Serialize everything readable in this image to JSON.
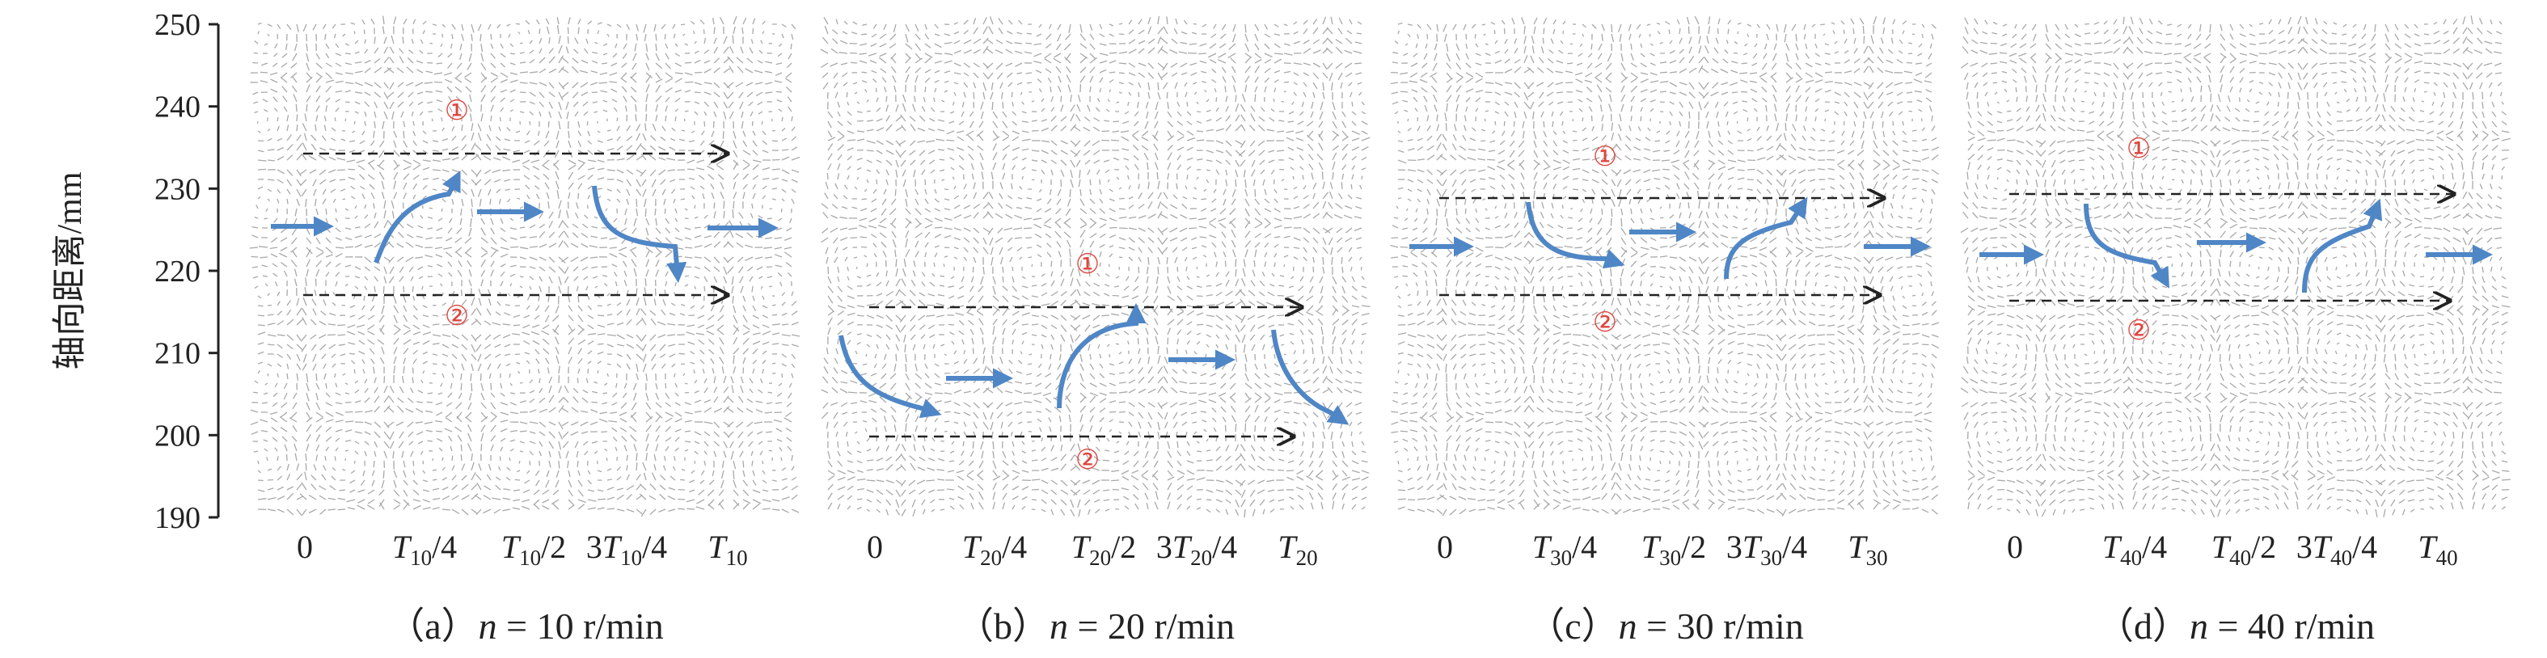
{
  "y_axis": {
    "label": "轴向距离/mm",
    "ticks": [
      "250",
      "240",
      "230",
      "220",
      "210",
      "200",
      "190"
    ]
  },
  "panels": [
    {
      "caption_prefix": "（a）",
      "caption_var": "n",
      "caption_value": " = 10 r/min",
      "columns": [
        {
          "main": "0",
          "sub": "",
          "tail": ""
        },
        {
          "main": "T",
          "sub": "10",
          "tail": "/4"
        },
        {
          "main": "T",
          "sub": "10",
          "tail": "/2"
        },
        {
          "main": "3T",
          "sub": "10",
          "tail": "/4"
        },
        {
          "main": "T",
          "sub": "10",
          "tail": ""
        }
      ],
      "markers": [
        "①",
        "②"
      ]
    },
    {
      "caption_prefix": "（b）",
      "caption_var": "n",
      "caption_value": " = 20 r/min",
      "columns": [
        {
          "main": "0",
          "sub": "",
          "tail": ""
        },
        {
          "main": "T",
          "sub": "20",
          "tail": "/4"
        },
        {
          "main": "T",
          "sub": "20",
          "tail": "/2"
        },
        {
          "main": "3T",
          "sub": "20",
          "tail": "/4"
        },
        {
          "main": "T",
          "sub": "20",
          "tail": ""
        }
      ],
      "markers": [
        "①",
        "②"
      ]
    },
    {
      "caption_prefix": "（c）",
      "caption_var": "n",
      "caption_value": " = 30 r/min",
      "columns": [
        {
          "main": "0",
          "sub": "",
          "tail": ""
        },
        {
          "main": "T",
          "sub": "30",
          "tail": "/4"
        },
        {
          "main": "T",
          "sub": "30",
          "tail": "/2"
        },
        {
          "main": "3T",
          "sub": "30",
          "tail": "/4"
        },
        {
          "main": "T",
          "sub": "30",
          "tail": ""
        }
      ],
      "markers": [
        "①",
        "②"
      ]
    },
    {
      "caption_prefix": "（d）",
      "caption_var": "n",
      "caption_value": " = 40 r/min",
      "columns": [
        {
          "main": "0",
          "sub": "",
          "tail": ""
        },
        {
          "main": "T",
          "sub": "40",
          "tail": "/4"
        },
        {
          "main": "T",
          "sub": "40",
          "tail": "/2"
        },
        {
          "main": "3T",
          "sub": "40",
          "tail": "/4"
        },
        {
          "main": "T",
          "sub": "40",
          "tail": ""
        }
      ],
      "markers": [
        "①",
        "②"
      ]
    }
  ],
  "colors": {
    "arrow": "#4f86c6",
    "marker": "#e0453f",
    "vector": "#9a9a9a",
    "axis": "#222222",
    "dashed": "#222222"
  }
}
